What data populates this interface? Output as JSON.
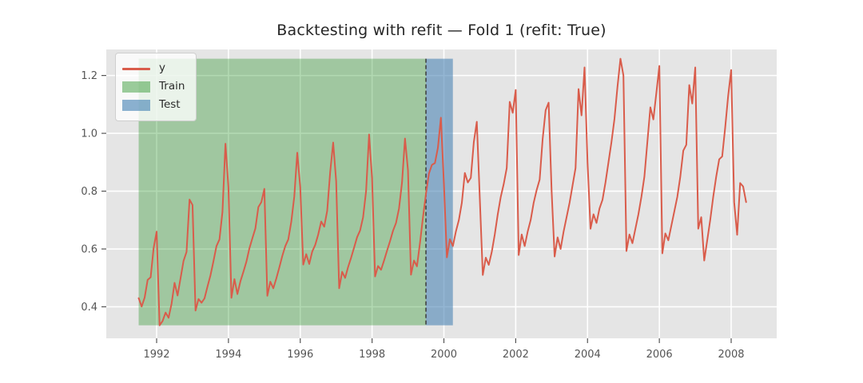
{
  "chart_data": {
    "type": "line",
    "title": "Backtesting with refit — Fold 1 (refit: True)",
    "x_axis": {
      "lim": [
        1990.598,
        2009.268
      ],
      "ticks": [
        {
          "label": "1992",
          "value": 1992
        },
        {
          "label": "1994",
          "value": 1994
        },
        {
          "label": "1996",
          "value": 1996
        },
        {
          "label": "1998",
          "value": 1998
        },
        {
          "label": "2000",
          "value": 2000
        },
        {
          "label": "2002",
          "value": 2002
        },
        {
          "label": "2004",
          "value": 2004
        },
        {
          "label": "2006",
          "value": 2006
        },
        {
          "label": "2008",
          "value": 2008
        }
      ]
    },
    "y_axis": {
      "lim": [
        0.291,
        1.29
      ],
      "ticks": [
        {
          "label": "0.4",
          "value": 0.4
        },
        {
          "label": "0.6",
          "value": 0.6
        },
        {
          "label": "0.8",
          "value": 0.8
        },
        {
          "label": "1.0",
          "value": 1.0
        },
        {
          "label": "1.2",
          "value": 1.2
        }
      ]
    },
    "series": [
      {
        "name": "y",
        "color": "#D95C4B",
        "x_start_year": 1991.5,
        "x_step_years": 0.0833333,
        "values": [
          0.43,
          0.401,
          0.432,
          0.493,
          0.502,
          0.603,
          0.66,
          0.336,
          0.351,
          0.38,
          0.362,
          0.411,
          0.483,
          0.439,
          0.499,
          0.559,
          0.59,
          0.771,
          0.752,
          0.387,
          0.427,
          0.414,
          0.429,
          0.47,
          0.509,
          0.558,
          0.61,
          0.633,
          0.728,
          0.964,
          0.813,
          0.431,
          0.496,
          0.444,
          0.488,
          0.521,
          0.556,
          0.602,
          0.637,
          0.671,
          0.745,
          0.762,
          0.808,
          0.438,
          0.487,
          0.464,
          0.498,
          0.536,
          0.576,
          0.61,
          0.633,
          0.694,
          0.781,
          0.933,
          0.813,
          0.546,
          0.582,
          0.548,
          0.591,
          0.614,
          0.65,
          0.695,
          0.677,
          0.732,
          0.866,
          0.968,
          0.834,
          0.464,
          0.521,
          0.5,
          0.538,
          0.57,
          0.605,
          0.641,
          0.664,
          0.71,
          0.8,
          0.996,
          0.845,
          0.505,
          0.541,
          0.528,
          0.56,
          0.594,
          0.627,
          0.663,
          0.69,
          0.74,
          0.829,
          0.982,
          0.872,
          0.511,
          0.56,
          0.54,
          0.62,
          0.709,
          0.79,
          0.861,
          0.891,
          0.897,
          0.95,
          1.054,
          0.827,
          0.571,
          0.634,
          0.61,
          0.66,
          0.7,
          0.76,
          0.863,
          0.83,
          0.846,
          0.97,
          1.04,
          0.775,
          0.51,
          0.57,
          0.545,
          0.59,
          0.65,
          0.72,
          0.78,
          0.825,
          0.88,
          1.109,
          1.071,
          1.15,
          0.579,
          0.65,
          0.61,
          0.66,
          0.7,
          0.76,
          0.804,
          0.84,
          0.98,
          1.08,
          1.106,
          0.8,
          0.574,
          0.64,
          0.6,
          0.66,
          0.71,
          0.76,
          0.82,
          0.88,
          1.153,
          1.062,
          1.228,
          0.9,
          0.67,
          0.72,
          0.69,
          0.74,
          0.77,
          0.83,
          0.9,
          0.97,
          1.05,
          1.16,
          1.258,
          1.2,
          0.593,
          0.65,
          0.62,
          0.67,
          0.72,
          0.78,
          0.85,
          0.97,
          1.09,
          1.048,
          1.14,
          1.233,
          0.585,
          0.654,
          0.63,
          0.68,
          0.73,
          0.78,
          0.85,
          0.94,
          0.96,
          1.167,
          1.103,
          1.228,
          0.67,
          0.71,
          0.56,
          0.63,
          0.7,
          0.78,
          0.85,
          0.91,
          0.92,
          1.02,
          1.13,
          1.219,
          0.762,
          0.649,
          0.828,
          0.816,
          0.762
        ]
      }
    ],
    "regions": [
      {
        "name": "Train",
        "fill": "rgba(0,128,0,0.30)",
        "x0": 1991.5,
        "x1": 1999.5,
        "y0": 0.336,
        "y1": 1.258
      },
      {
        "name": "Test",
        "fill": "rgba(70,130,180,0.58)",
        "x0": 1999.5,
        "x1": 2000.25,
        "y0": 0.336,
        "y1": 1.258
      }
    ],
    "split_line": {
      "x": 1999.5,
      "y0": 0.336,
      "y1": 1.258,
      "color": "#3b3b3b",
      "dash": "5,3"
    },
    "legend": [
      {
        "label": "y",
        "type": "line",
        "color": "#D95C4B"
      },
      {
        "label": "Train",
        "type": "patch",
        "color": "rgba(0,128,0,0.38)"
      },
      {
        "label": "Test",
        "type": "patch",
        "color": "rgba(70,130,180,0.62)"
      }
    ],
    "colors": {
      "figure_background": "#ffffff",
      "axes_background": "#e5e5e5",
      "grid": "#ffffff",
      "tick": "#555555",
      "title": "#262626"
    },
    "grid": true,
    "legend_position": "upper left"
  }
}
